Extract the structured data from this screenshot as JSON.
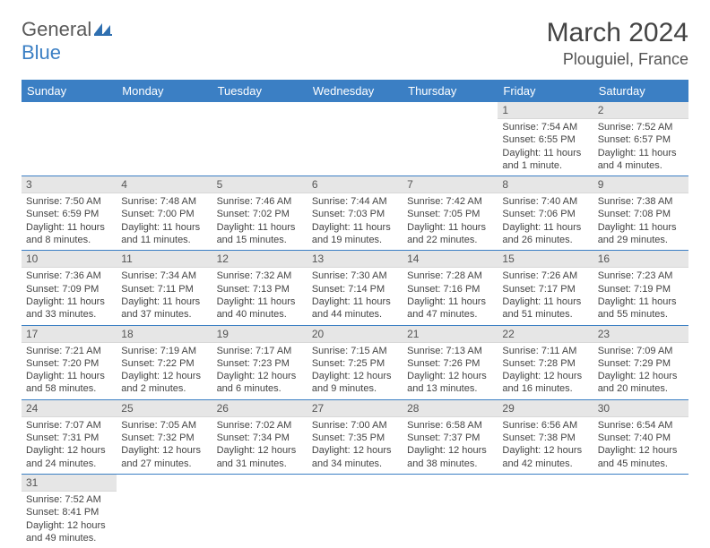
{
  "logo": {
    "word1": "General",
    "word2": "Blue"
  },
  "title": "March 2024",
  "location": "Plouguiel, France",
  "colors": {
    "header_bg": "#3b7fc4",
    "header_text": "#ffffff",
    "daynum_bg": "#e6e6e6",
    "border": "#3b7fc4",
    "body_text": "#444444"
  },
  "day_headers": [
    "Sunday",
    "Monday",
    "Tuesday",
    "Wednesday",
    "Thursday",
    "Friday",
    "Saturday"
  ],
  "weeks": [
    [
      null,
      null,
      null,
      null,
      null,
      {
        "n": "1",
        "sr": "Sunrise: 7:54 AM",
        "ss": "Sunset: 6:55 PM",
        "dl": "Daylight: 11 hours and 1 minute."
      },
      {
        "n": "2",
        "sr": "Sunrise: 7:52 AM",
        "ss": "Sunset: 6:57 PM",
        "dl": "Daylight: 11 hours and 4 minutes."
      }
    ],
    [
      {
        "n": "3",
        "sr": "Sunrise: 7:50 AM",
        "ss": "Sunset: 6:59 PM",
        "dl": "Daylight: 11 hours and 8 minutes."
      },
      {
        "n": "4",
        "sr": "Sunrise: 7:48 AM",
        "ss": "Sunset: 7:00 PM",
        "dl": "Daylight: 11 hours and 11 minutes."
      },
      {
        "n": "5",
        "sr": "Sunrise: 7:46 AM",
        "ss": "Sunset: 7:02 PM",
        "dl": "Daylight: 11 hours and 15 minutes."
      },
      {
        "n": "6",
        "sr": "Sunrise: 7:44 AM",
        "ss": "Sunset: 7:03 PM",
        "dl": "Daylight: 11 hours and 19 minutes."
      },
      {
        "n": "7",
        "sr": "Sunrise: 7:42 AM",
        "ss": "Sunset: 7:05 PM",
        "dl": "Daylight: 11 hours and 22 minutes."
      },
      {
        "n": "8",
        "sr": "Sunrise: 7:40 AM",
        "ss": "Sunset: 7:06 PM",
        "dl": "Daylight: 11 hours and 26 minutes."
      },
      {
        "n": "9",
        "sr": "Sunrise: 7:38 AM",
        "ss": "Sunset: 7:08 PM",
        "dl": "Daylight: 11 hours and 29 minutes."
      }
    ],
    [
      {
        "n": "10",
        "sr": "Sunrise: 7:36 AM",
        "ss": "Sunset: 7:09 PM",
        "dl": "Daylight: 11 hours and 33 minutes."
      },
      {
        "n": "11",
        "sr": "Sunrise: 7:34 AM",
        "ss": "Sunset: 7:11 PM",
        "dl": "Daylight: 11 hours and 37 minutes."
      },
      {
        "n": "12",
        "sr": "Sunrise: 7:32 AM",
        "ss": "Sunset: 7:13 PM",
        "dl": "Daylight: 11 hours and 40 minutes."
      },
      {
        "n": "13",
        "sr": "Sunrise: 7:30 AM",
        "ss": "Sunset: 7:14 PM",
        "dl": "Daylight: 11 hours and 44 minutes."
      },
      {
        "n": "14",
        "sr": "Sunrise: 7:28 AM",
        "ss": "Sunset: 7:16 PM",
        "dl": "Daylight: 11 hours and 47 minutes."
      },
      {
        "n": "15",
        "sr": "Sunrise: 7:26 AM",
        "ss": "Sunset: 7:17 PM",
        "dl": "Daylight: 11 hours and 51 minutes."
      },
      {
        "n": "16",
        "sr": "Sunrise: 7:23 AM",
        "ss": "Sunset: 7:19 PM",
        "dl": "Daylight: 11 hours and 55 minutes."
      }
    ],
    [
      {
        "n": "17",
        "sr": "Sunrise: 7:21 AM",
        "ss": "Sunset: 7:20 PM",
        "dl": "Daylight: 11 hours and 58 minutes."
      },
      {
        "n": "18",
        "sr": "Sunrise: 7:19 AM",
        "ss": "Sunset: 7:22 PM",
        "dl": "Daylight: 12 hours and 2 minutes."
      },
      {
        "n": "19",
        "sr": "Sunrise: 7:17 AM",
        "ss": "Sunset: 7:23 PM",
        "dl": "Daylight: 12 hours and 6 minutes."
      },
      {
        "n": "20",
        "sr": "Sunrise: 7:15 AM",
        "ss": "Sunset: 7:25 PM",
        "dl": "Daylight: 12 hours and 9 minutes."
      },
      {
        "n": "21",
        "sr": "Sunrise: 7:13 AM",
        "ss": "Sunset: 7:26 PM",
        "dl": "Daylight: 12 hours and 13 minutes."
      },
      {
        "n": "22",
        "sr": "Sunrise: 7:11 AM",
        "ss": "Sunset: 7:28 PM",
        "dl": "Daylight: 12 hours and 16 minutes."
      },
      {
        "n": "23",
        "sr": "Sunrise: 7:09 AM",
        "ss": "Sunset: 7:29 PM",
        "dl": "Daylight: 12 hours and 20 minutes."
      }
    ],
    [
      {
        "n": "24",
        "sr": "Sunrise: 7:07 AM",
        "ss": "Sunset: 7:31 PM",
        "dl": "Daylight: 12 hours and 24 minutes."
      },
      {
        "n": "25",
        "sr": "Sunrise: 7:05 AM",
        "ss": "Sunset: 7:32 PM",
        "dl": "Daylight: 12 hours and 27 minutes."
      },
      {
        "n": "26",
        "sr": "Sunrise: 7:02 AM",
        "ss": "Sunset: 7:34 PM",
        "dl": "Daylight: 12 hours and 31 minutes."
      },
      {
        "n": "27",
        "sr": "Sunrise: 7:00 AM",
        "ss": "Sunset: 7:35 PM",
        "dl": "Daylight: 12 hours and 34 minutes."
      },
      {
        "n": "28",
        "sr": "Sunrise: 6:58 AM",
        "ss": "Sunset: 7:37 PM",
        "dl": "Daylight: 12 hours and 38 minutes."
      },
      {
        "n": "29",
        "sr": "Sunrise: 6:56 AM",
        "ss": "Sunset: 7:38 PM",
        "dl": "Daylight: 12 hours and 42 minutes."
      },
      {
        "n": "30",
        "sr": "Sunrise: 6:54 AM",
        "ss": "Sunset: 7:40 PM",
        "dl": "Daylight: 12 hours and 45 minutes."
      }
    ],
    [
      {
        "n": "31",
        "sr": "Sunrise: 7:52 AM",
        "ss": "Sunset: 8:41 PM",
        "dl": "Daylight: 12 hours and 49 minutes."
      },
      null,
      null,
      null,
      null,
      null,
      null
    ]
  ]
}
